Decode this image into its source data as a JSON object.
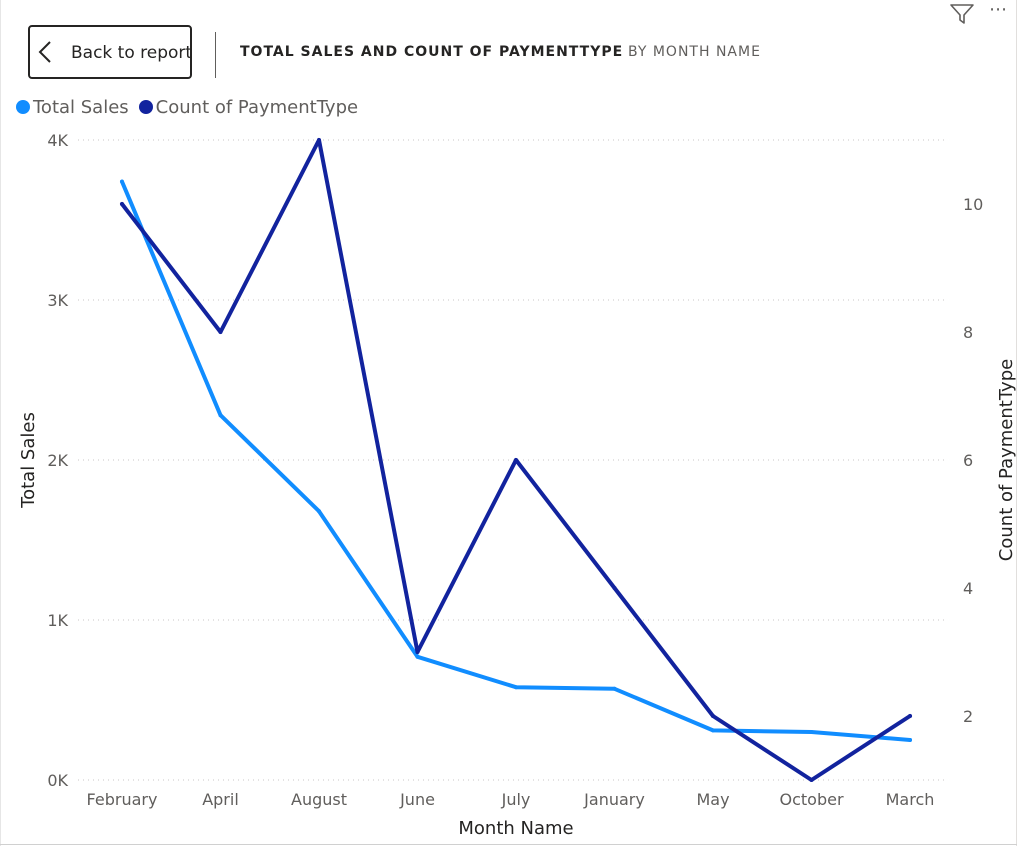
{
  "header": {
    "back_label": "Back to report",
    "title": "TOTAL SALES AND COUNT OF PAYMENTTYPE",
    "subtitle": "BY MONTH NAME",
    "more_label": "⋯"
  },
  "icons": {
    "back": "chevron-left-icon",
    "filter": "filter-icon",
    "more": "more-options-icon"
  },
  "legend": [
    {
      "label": "Total Sales",
      "color": "#118DFF"
    },
    {
      "label": "Count of PaymentType",
      "color": "#12239E"
    }
  ],
  "chart_data": {
    "type": "line",
    "categories": [
      "February",
      "April",
      "August",
      "June",
      "July",
      "January",
      "May",
      "October",
      "March"
    ],
    "series": [
      {
        "name": "Total Sales",
        "axis": "left",
        "color": "#118DFF",
        "values": [
          3740,
          2280,
          1680,
          770,
          580,
          570,
          310,
          300,
          250
        ]
      },
      {
        "name": "Count of PaymentType",
        "axis": "right",
        "color": "#12239E",
        "values": [
          10,
          8,
          11,
          3,
          6,
          4,
          2,
          1,
          2
        ]
      }
    ],
    "xlabel": "Month Name",
    "ylabel": "Total Sales",
    "y2label": "Count of PaymentType",
    "ylim": [
      0,
      4000
    ],
    "y2lim": [
      1,
      11
    ],
    "yticks": [
      0,
      1000,
      2000,
      3000,
      4000
    ],
    "ytick_labels": [
      "0K",
      "1K",
      "2K",
      "3K",
      "4K"
    ],
    "y2ticks": [
      2,
      4,
      6,
      8,
      10
    ],
    "y2tick_labels": [
      "2",
      "4",
      "6",
      "8",
      "10"
    ],
    "grid": true,
    "legend_position": "top-left"
  }
}
